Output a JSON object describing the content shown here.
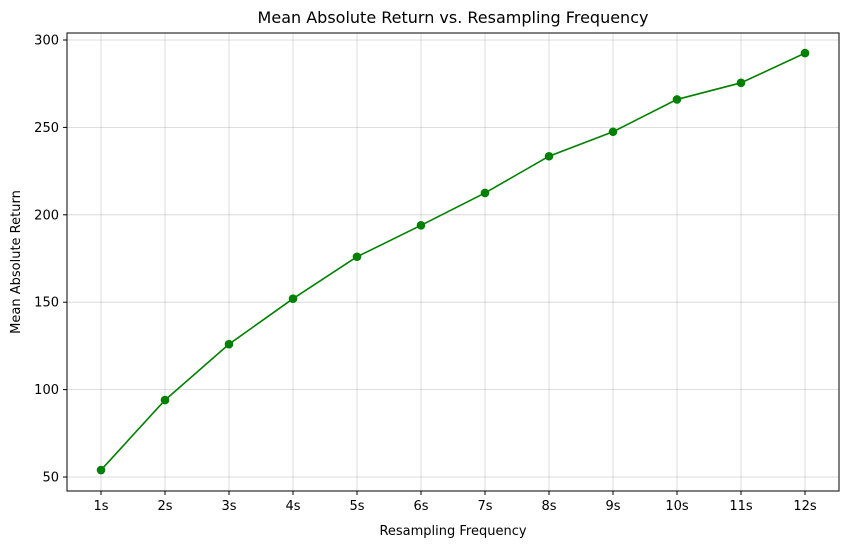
{
  "chart_data": {
    "type": "line",
    "title": "Mean Absolute Return vs. Resampling Frequency",
    "xlabel": "Resampling Frequency",
    "ylabel": "Mean Absolute Return",
    "categories": [
      "1s",
      "2s",
      "3s",
      "4s",
      "5s",
      "6s",
      "7s",
      "8s",
      "9s",
      "10s",
      "11s",
      "12s"
    ],
    "series": [
      {
        "values": [
          54,
          94,
          126,
          152,
          176,
          194,
          212.5,
          233.5,
          247.5,
          266,
          275.5,
          292.5
        ],
        "color": "#008000",
        "marker": "circle"
      }
    ],
    "ylim": [
      42,
      304
    ],
    "yticks": [
      50,
      100,
      150,
      200,
      250,
      300
    ],
    "grid": true,
    "legend": "none"
  }
}
